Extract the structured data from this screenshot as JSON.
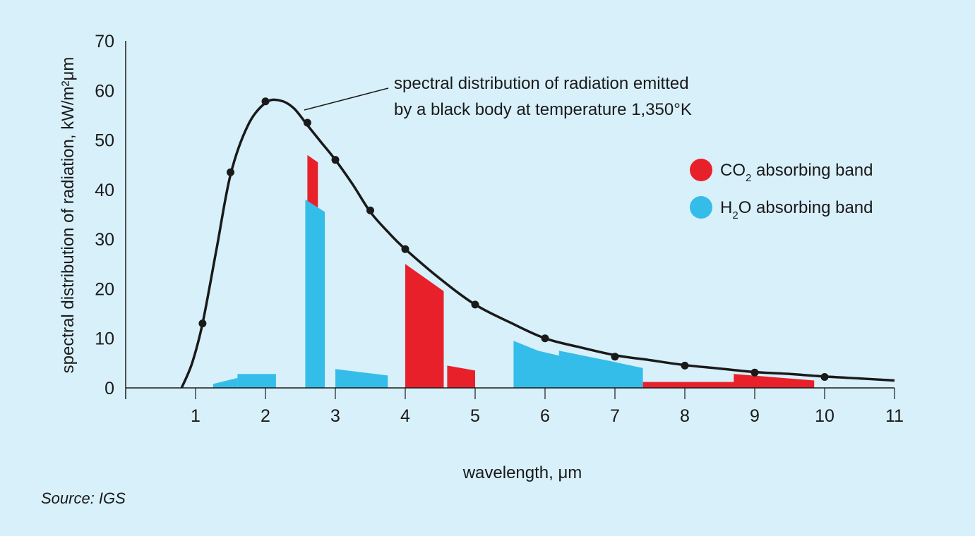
{
  "chart_data": {
    "type": "line",
    "xlabel": "wavelength, μm",
    "ylabel": "spectral distribution of radiation, kW/m²μm",
    "xlim": [
      0,
      11
    ],
    "ylim": [
      0,
      70
    ],
    "x_ticks": [
      1,
      2,
      3,
      4,
      5,
      6,
      7,
      8,
      9,
      10,
      11
    ],
    "y_ticks": [
      0,
      10,
      20,
      30,
      40,
      50,
      60,
      70
    ],
    "grid": false,
    "legend_position": "right",
    "annotation": {
      "line1": "spectral distribution of radiation emitted",
      "line2": "by a black body at temperature 1,350°K",
      "points_to": [
        2.6,
        55.5
      ]
    },
    "curve": {
      "points": [
        [
          0.8,
          0
        ],
        [
          0.95,
          5
        ],
        [
          1.1,
          13
        ],
        [
          1.3,
          28
        ],
        [
          1.5,
          43
        ],
        [
          1.75,
          53
        ],
        [
          2.0,
          57.5
        ],
        [
          2.2,
          58
        ],
        [
          2.4,
          56.5
        ],
        [
          2.6,
          53
        ],
        [
          2.8,
          49.5
        ],
        [
          3.0,
          46
        ],
        [
          3.25,
          41
        ],
        [
          3.5,
          35.5
        ],
        [
          3.75,
          31.5
        ],
        [
          4.0,
          28
        ],
        [
          4.5,
          22
        ],
        [
          5.0,
          16.8
        ],
        [
          5.5,
          13.2
        ],
        [
          6.0,
          10
        ],
        [
          6.5,
          8.2
        ],
        [
          7.0,
          6.6
        ],
        [
          7.5,
          5.6
        ],
        [
          8.0,
          4.6
        ],
        [
          8.5,
          3.9
        ],
        [
          9.0,
          3.2
        ],
        [
          9.5,
          2.8
        ],
        [
          10.0,
          2.3
        ],
        [
          10.5,
          1.9
        ],
        [
          11.0,
          1.5
        ]
      ],
      "markers": [
        [
          1.1,
          13
        ],
        [
          1.5,
          43.5
        ],
        [
          2.0,
          57.8
        ],
        [
          2.6,
          53.5
        ],
        [
          3.0,
          46
        ],
        [
          3.5,
          35.8
        ],
        [
          4.0,
          28
        ],
        [
          5.0,
          16.8
        ],
        [
          6.0,
          10
        ],
        [
          7.0,
          6.3
        ],
        [
          8.0,
          4.5
        ],
        [
          9.0,
          3.1
        ],
        [
          10.0,
          2.2
        ]
      ]
    },
    "series": [
      {
        "name": "CO₂ absorbing band",
        "color": "#e8202a",
        "bands": [
          [
            [
              2.6,
              0
            ],
            [
              2.6,
              47
            ],
            [
              2.75,
              45.5
            ],
            [
              2.75,
              0
            ]
          ],
          [
            [
              4.0,
              0
            ],
            [
              4.0,
              25
            ],
            [
              4.55,
              19.5
            ],
            [
              4.55,
              0
            ]
          ],
          [
            [
              4.6,
              0
            ],
            [
              4.6,
              4.5
            ],
            [
              5.0,
              3.5
            ],
            [
              5.0,
              0
            ]
          ],
          [
            [
              7.4,
              0
            ],
            [
              7.4,
              1.2
            ],
            [
              8.7,
              1.2
            ],
            [
              8.7,
              2.8
            ],
            [
              9.85,
              1.5
            ],
            [
              9.85,
              0
            ]
          ]
        ]
      },
      {
        "name": "H₂O absorbing band",
        "color": "#35bde9",
        "bands": [
          [
            [
              1.25,
              0
            ],
            [
              1.25,
              0.8
            ],
            [
              1.6,
              2
            ],
            [
              1.6,
              0
            ]
          ],
          [
            [
              1.6,
              0
            ],
            [
              1.6,
              2.8
            ],
            [
              2.15,
              2.8
            ],
            [
              2.15,
              0
            ]
          ],
          [
            [
              2.57,
              0
            ],
            [
              2.57,
              38
            ],
            [
              2.85,
              35.5
            ],
            [
              2.85,
              0
            ]
          ],
          [
            [
              3.0,
              0
            ],
            [
              3.0,
              3.8
            ],
            [
              3.75,
              2.5
            ],
            [
              3.75,
              0
            ]
          ],
          [
            [
              5.55,
              0
            ],
            [
              5.55,
              9.5
            ],
            [
              5.9,
              7.5
            ],
            [
              6.2,
              6.5
            ],
            [
              6.2,
              7.5
            ],
            [
              6.9,
              5.5
            ],
            [
              7.4,
              4.0
            ],
            [
              7.4,
              0
            ]
          ]
        ]
      }
    ],
    "legend": [
      {
        "label_base": "CO",
        "label_sub": "2",
        "label_rest": " absorbing band",
        "color": "#e8202a"
      },
      {
        "label_base": "H",
        "label_sub": "2",
        "label_rest": "O absorbing band",
        "color": "#35bde9"
      }
    ]
  },
  "source": "Source: IGS"
}
